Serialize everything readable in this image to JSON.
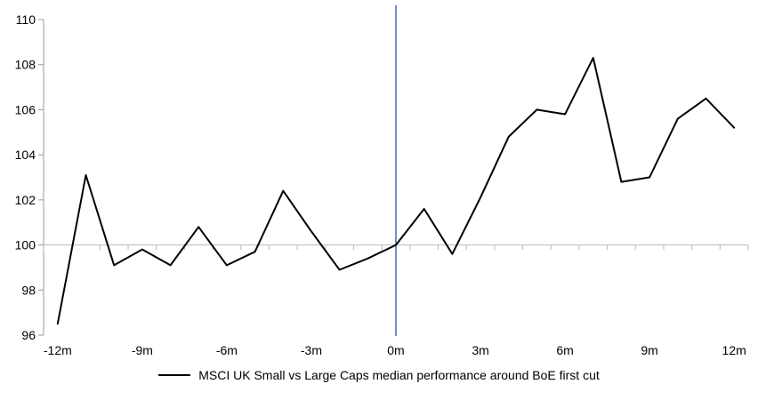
{
  "chart_data": {
    "type": "line",
    "title": "",
    "xlabel": "",
    "ylabel": "",
    "x": [
      -12,
      -11,
      -10,
      -9,
      -8,
      -7,
      -6,
      -5,
      -4,
      -3,
      -2,
      -1,
      0,
      1,
      2,
      3,
      4,
      5,
      6,
      7,
      8,
      9,
      10,
      11,
      12
    ],
    "series": [
      {
        "name": "MSCI UK Small vs Large Caps median performance around BoE first cut",
        "values": [
          96.5,
          103.1,
          99.1,
          99.8,
          99.1,
          100.8,
          99.1,
          99.7,
          102.4,
          100.6,
          98.9,
          99.4,
          100.0,
          101.6,
          99.6,
          102.1,
          104.8,
          106.0,
          105.8,
          108.3,
          102.8,
          103.0,
          105.6,
          106.5,
          105.2
        ]
      }
    ],
    "xlim": [
      -12,
      12
    ],
    "ylim": [
      96,
      110
    ],
    "y_ticks": [
      96,
      98,
      100,
      102,
      104,
      106,
      108,
      110
    ],
    "x_tick_positions": [
      -12,
      -9,
      -6,
      -3,
      0,
      3,
      6,
      9,
      12
    ],
    "x_tick_labels": [
      "-12m",
      "-9m",
      "-6m",
      "-3m",
      "0m",
      "3m",
      "6m",
      "9m",
      "12m"
    ],
    "baseline_value": 100,
    "event_line_x": 0,
    "grid": "baseline-only",
    "legend_position": "bottom"
  },
  "legend": {
    "label": "MSCI UK Small vs Large Caps median performance around BoE first cut"
  },
  "colors": {
    "series_line": "#000000",
    "event_line": "#4f81bd",
    "axis": "#9b9b9b",
    "baseline": "#b7b7b7",
    "text": "#000000",
    "background": "#ffffff"
  }
}
